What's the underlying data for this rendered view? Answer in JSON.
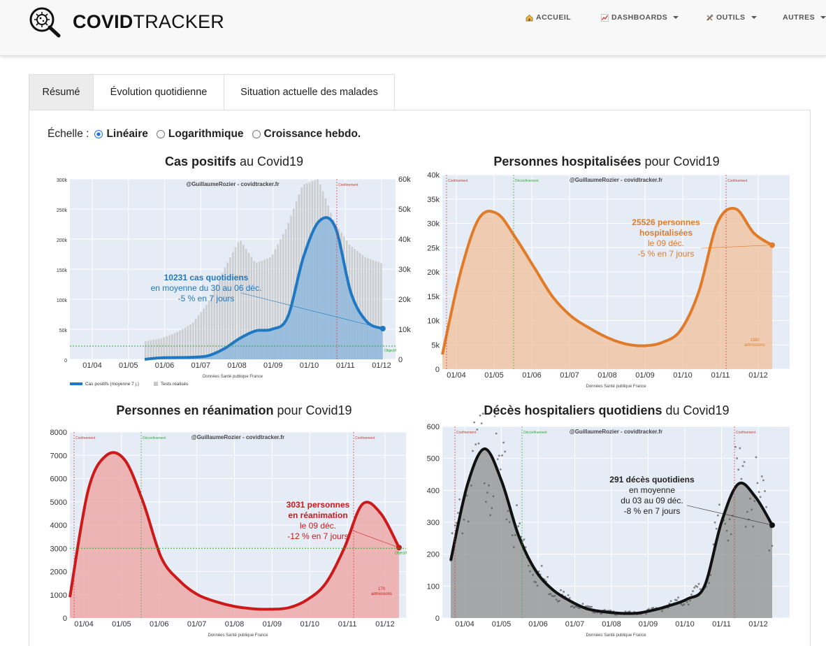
{
  "brand": {
    "name_bold": "COVID",
    "name_light": "TRACKER"
  },
  "nav": {
    "accueil": "ACCUEIL",
    "dashboards": "DASHBOARDS",
    "outils": "OUTILS",
    "autres": "AUTRES"
  },
  "icons": {
    "accueil": "house-icon",
    "dashboards": "chart-icon",
    "outils": "tools-icon",
    "logo": "virus-magnifier-icon"
  },
  "tabs": [
    {
      "label": "Résumé",
      "active": true
    },
    {
      "label": "Évolution quotidienne",
      "active": false
    },
    {
      "label": "Situation actuelle des malades",
      "active": false
    }
  ],
  "scale": {
    "label": "Échelle :",
    "options": [
      {
        "label": "Linéaire",
        "checked": true
      },
      {
        "label": "Logarithmique",
        "checked": false
      },
      {
        "label": "Croissance hebdo.",
        "checked": false
      }
    ]
  },
  "chart_data": [
    {
      "type": "area",
      "title_bold": "Cas positifs",
      "title_rest": " au Covid19",
      "credit": "@GuillaumeRozier - covidtracker.fr",
      "source": "Données Santé publique France",
      "x_ticks": [
        "01/04",
        "01/05",
        "01/06",
        "01/07",
        "01/08",
        "01/09",
        "01/10",
        "01/11",
        "01/12"
      ],
      "y_left_ticks": [
        "0",
        "50k",
        "100k",
        "150k",
        "200k",
        "250k",
        "300k"
      ],
      "y_right_ticks": [
        "0",
        "10k",
        "20k",
        "30k",
        "40k",
        "50k",
        "60k"
      ],
      "ylim_left": [
        0,
        300000
      ],
      "ylim_right": [
        0,
        60000
      ],
      "series": [
        {
          "name": "Cas positifs (moyenne 7 j.)",
          "color": "#1f78c1",
          "values": [
            0,
            500,
            600,
            700,
            1200,
            3500,
            7000,
            9500,
            10000,
            14000,
            34000,
            46000,
            44000,
            22000,
            12500,
            10231
          ]
        },
        {
          "name": "Tests réalisés",
          "color": "#c8c8c8",
          "values": [
            30000,
            35000,
            45000,
            60000,
            95000,
            150000,
            200000,
            160000,
            170000,
            220000,
            290000,
            300000,
            230000,
            190000,
            170000,
            160000
          ]
        }
      ],
      "annotations": {
        "markers": [
          "Confinement"
        ],
        "objective": "Objectif"
      },
      "callout": {
        "headline": "10231 cas quotidiens",
        "line2": "en moyenne du 30 au 06 déc.",
        "line3": "-5 % en 7 jours"
      }
    },
    {
      "type": "area",
      "title_bold": "Personnes hospitalisées",
      "title_rest": " pour Covid19",
      "credit": "@GuillaumeRozier - covidtracker.fr",
      "source": "Données Santé publique France",
      "x_ticks": [
        "01/04",
        "01/05",
        "01/06",
        "01/07",
        "01/08",
        "01/09",
        "01/10",
        "01/11",
        "01/12"
      ],
      "y_left_ticks": [
        "0",
        "5k",
        "10k",
        "15k",
        "20k",
        "25k",
        "30k",
        "35k",
        "40k"
      ],
      "ylim": [
        0,
        40000
      ],
      "series": [
        {
          "name": "Personnes hospitalisées",
          "color": "#e07b2a",
          "values": [
            3000,
            20000,
            31000,
            32000,
            27000,
            21000,
            15000,
            11000,
            8500,
            6500,
            5200,
            4800,
            5500,
            8000,
            16000,
            30000,
            33000,
            28000,
            25526
          ]
        }
      ],
      "annotations": {
        "markers": [
          "Confinement",
          "Déconfinement",
          "Confinement"
        ],
        "admissions": "1380",
        "admissions_word": "admissions"
      },
      "callout": {
        "headline1": "25526 personnes",
        "headline2": "hospitalisées",
        "line2": "le 09 déc.",
        "line3": "-5 % en 7 jours"
      }
    },
    {
      "type": "area",
      "title_bold": "Personnes en réanimation",
      "title_rest": " pour Covid19",
      "credit": "@GuillaumeRozier - covidtracker.fr",
      "source": "Données Santé publique France",
      "x_ticks": [
        "01/04",
        "01/05",
        "01/06",
        "01/07",
        "01/08",
        "01/09",
        "01/10",
        "01/11",
        "01/12"
      ],
      "y_left_ticks": [
        "0",
        "1000",
        "2000",
        "3000",
        "4000",
        "5000",
        "6000",
        "7000",
        "8000"
      ],
      "ylim": [
        0,
        8000
      ],
      "series": [
        {
          "name": "Personnes en réanimation",
          "color": "#cc1a1a",
          "values": [
            900,
            5500,
            7000,
            6800,
            5000,
            2600,
            1600,
            1000,
            700,
            500,
            400,
            380,
            450,
            800,
            1500,
            3000,
            4900,
            4500,
            3031
          ]
        }
      ],
      "annotations": {
        "markers": [
          "Confinement",
          "Déconfinement",
          "Confinement"
        ],
        "objective": "Objectif",
        "admissions": "170",
        "admissions_word": "admissions"
      },
      "callout": {
        "headline1": "3031 personnes",
        "headline2": "en réanimation",
        "line2": "le 09 déc.",
        "line3": "-12 % en 7 jours"
      }
    },
    {
      "type": "area",
      "title_bold": "Décès hospitaliers quotidiens",
      "title_rest": " du Covid19",
      "credit": "@GuillaumeRozier - covidtracker.fr",
      "source": "Données Santé publique France",
      "x_ticks": [
        "01/04",
        "01/05",
        "01/06",
        "01/07",
        "01/08",
        "01/09",
        "01/10",
        "01/11",
        "01/12"
      ],
      "y_left_ticks": [
        "0",
        "100",
        "200",
        "300",
        "400",
        "500",
        "600"
      ],
      "ylim": [
        0,
        600
      ],
      "series": [
        {
          "name": "Décès hospitaliers (moyenne 7 j.)",
          "color": "#111111",
          "values": [
            180,
            420,
            530,
            430,
            260,
            150,
            90,
            55,
            30,
            20,
            15,
            15,
            25,
            40,
            60,
            100,
            300,
            420,
            380,
            291
          ]
        }
      ],
      "annotations": {
        "markers": [
          "Confinement",
          "Déconfinement",
          "Confinement"
        ]
      },
      "callout": {
        "headline": "291 décès quotidiens",
        "line2": "en moyenne",
        "line3": "du 03 au 09 déc.",
        "line4": "-8 % en 7 jours"
      }
    }
  ]
}
